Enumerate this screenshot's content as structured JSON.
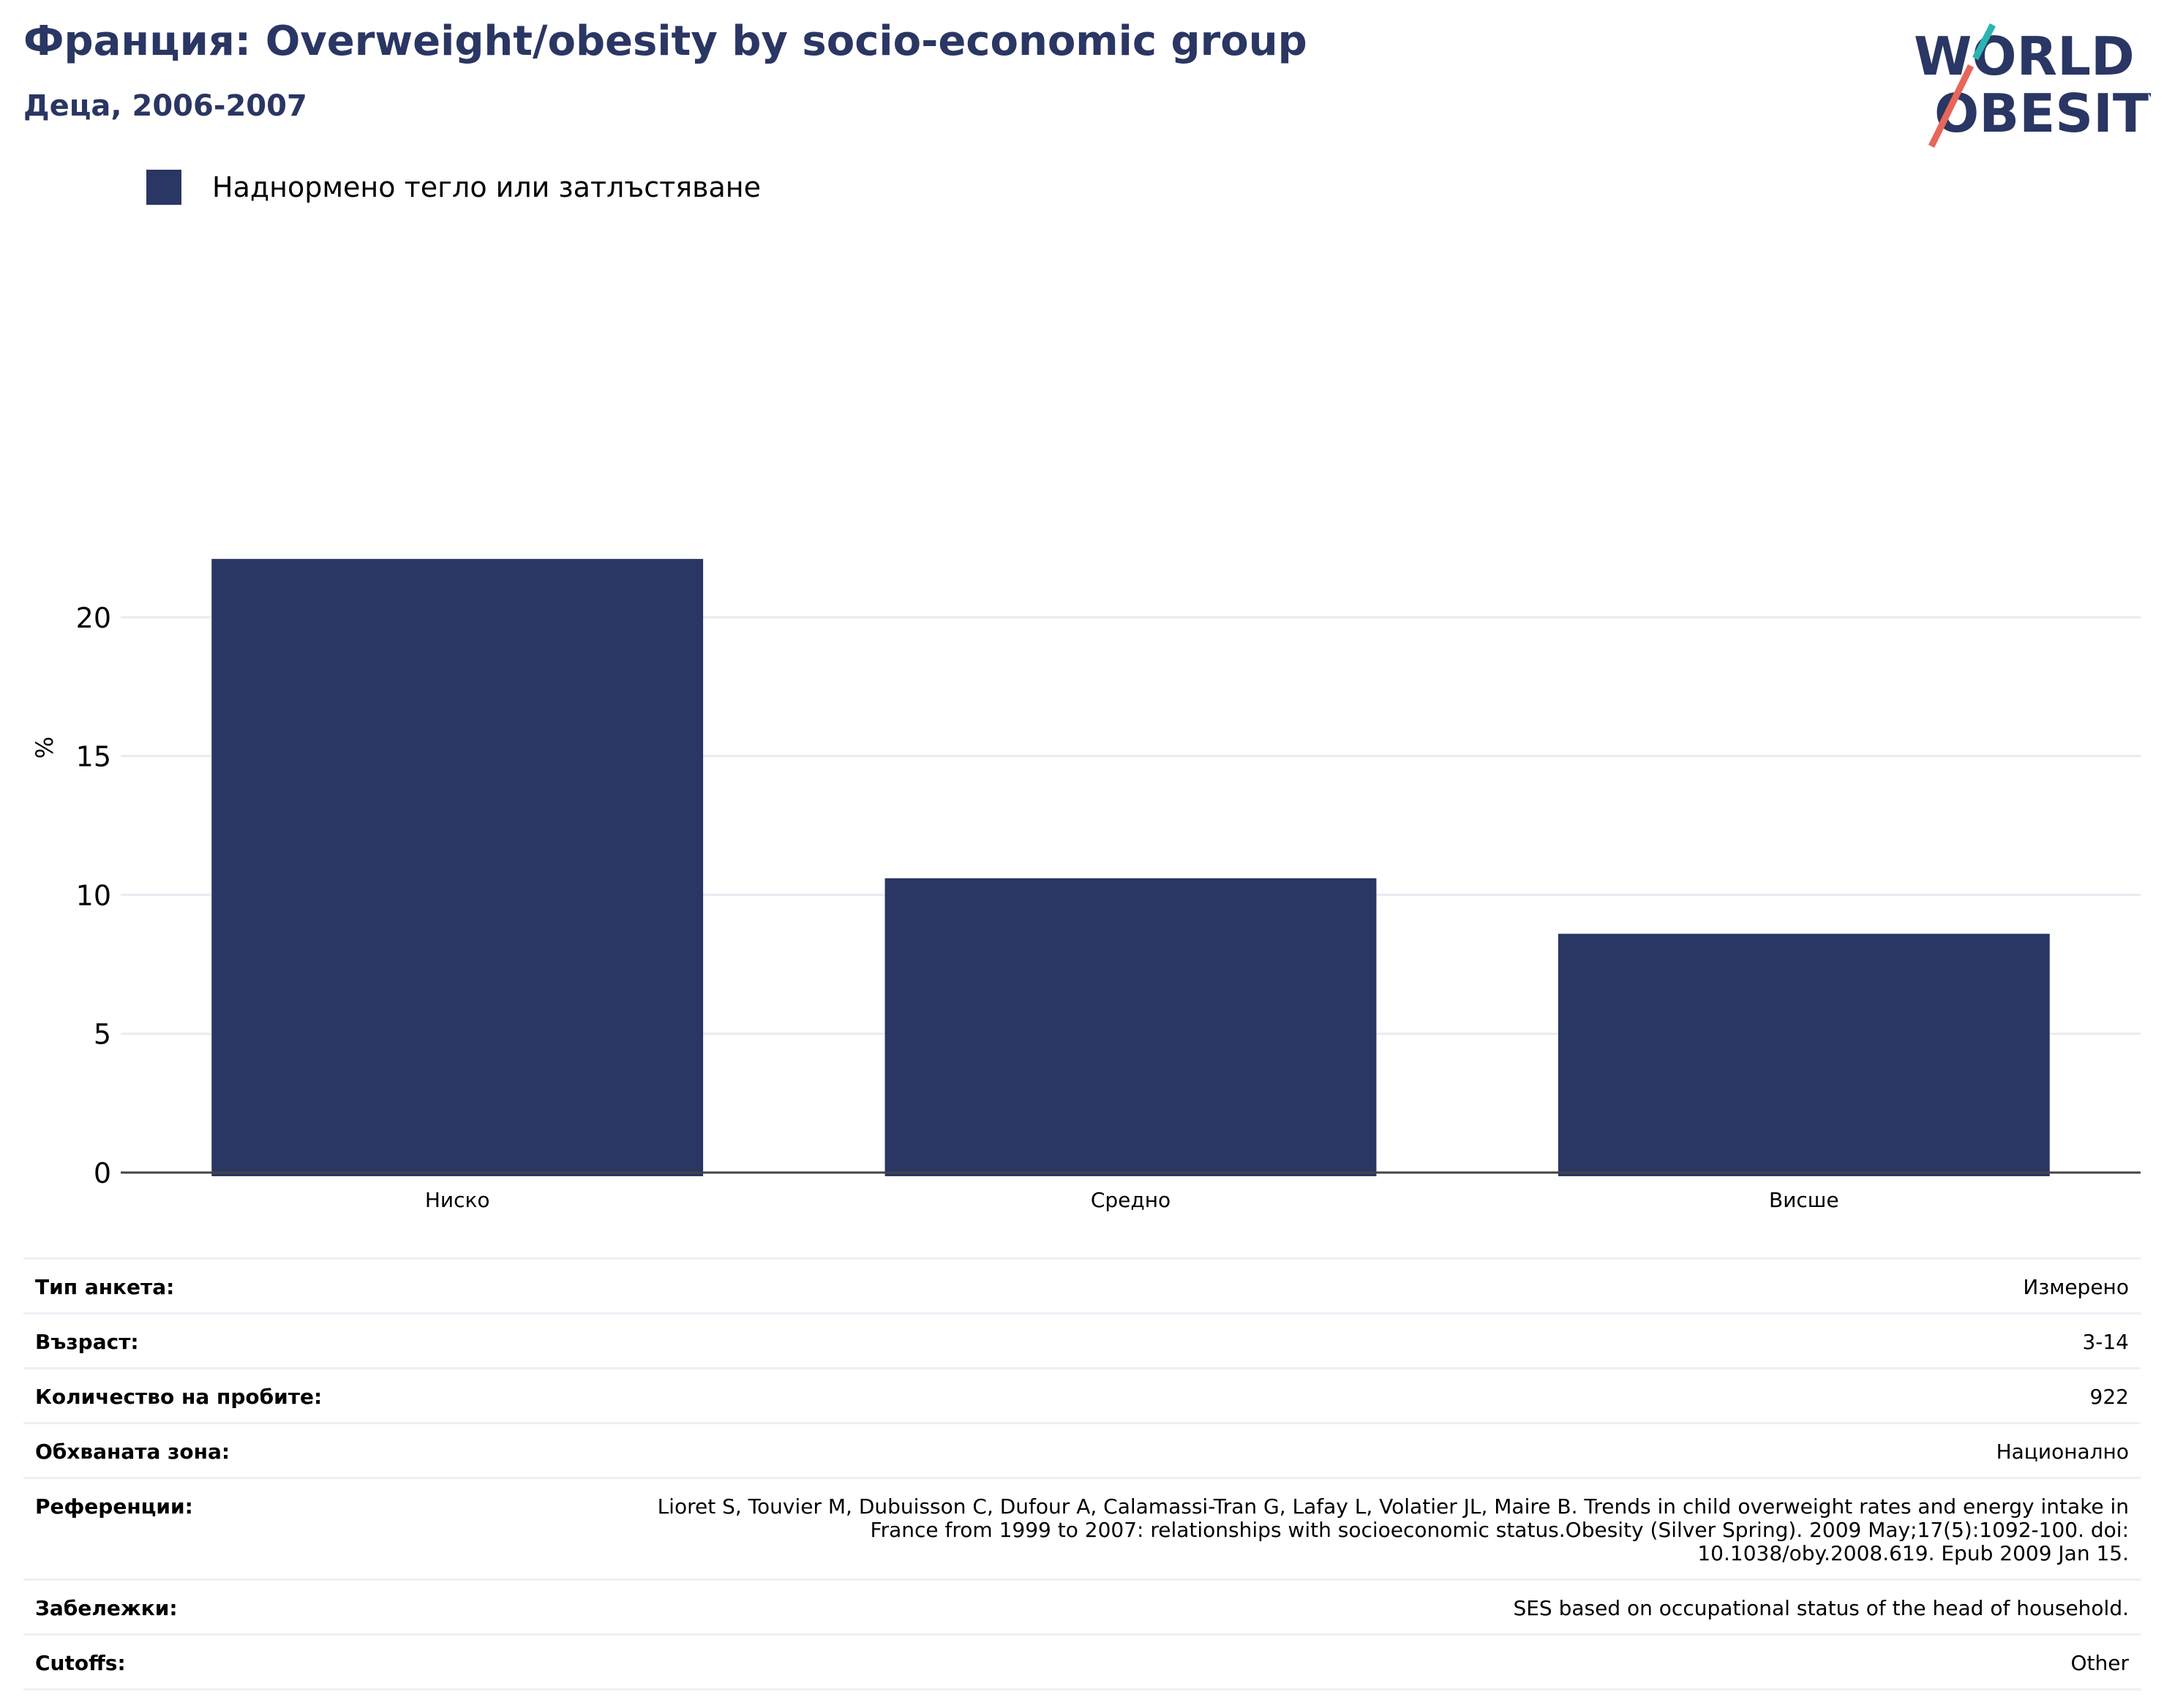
{
  "title": "Франция: Overweight/obesity by socio-economic group",
  "subtitle": "Деца, 2006-2007",
  "logo": {
    "line1": "WORLD",
    "line2": "OBESITY"
  },
  "colors": {
    "bar": "#2a3663",
    "title": "#2a3663",
    "logo_teal": "#2bb5b1",
    "logo_red": "#e8665a"
  },
  "chart_data": {
    "type": "bar",
    "categories": [
      "Ниско",
      "Средно",
      "Висше"
    ],
    "series": [
      {
        "name": "Наднормено тегло или затлъстяване",
        "values": [
          22.1,
          10.6,
          8.6
        ]
      }
    ],
    "ylabel": "%",
    "xlabel": "",
    "ylim": [
      0,
      24
    ],
    "yticks": [
      0,
      5,
      10,
      15,
      20
    ],
    "grid": true,
    "legend": "top-left"
  },
  "meta": [
    {
      "label": "Тип анкета:",
      "value": "Измерено"
    },
    {
      "label": "Възраст:",
      "value": "3-14"
    },
    {
      "label": "Количество на пробите:",
      "value": "922"
    },
    {
      "label": "Обхваната зона:",
      "value": "Национално"
    },
    {
      "label": "Референции:",
      "value": "Lioret S, Touvier M, Dubuisson C, Dufour A, Calamassi-Tran G, Lafay L, Volatier JL, Maire B. Trends in child overweight rates and energy intake in France from 1999 to 2007: relationships with socioeconomic status.Obesity (Silver Spring). 2009 May;17(5):1092-100. doi: 10.1038/oby.2008.619. Epub 2009 Jan 15."
    },
    {
      "label": "Забележки:",
      "value": "SES based on occupational status of the head of household."
    },
    {
      "label": "Cutoffs:",
      "value": "Other"
    }
  ]
}
